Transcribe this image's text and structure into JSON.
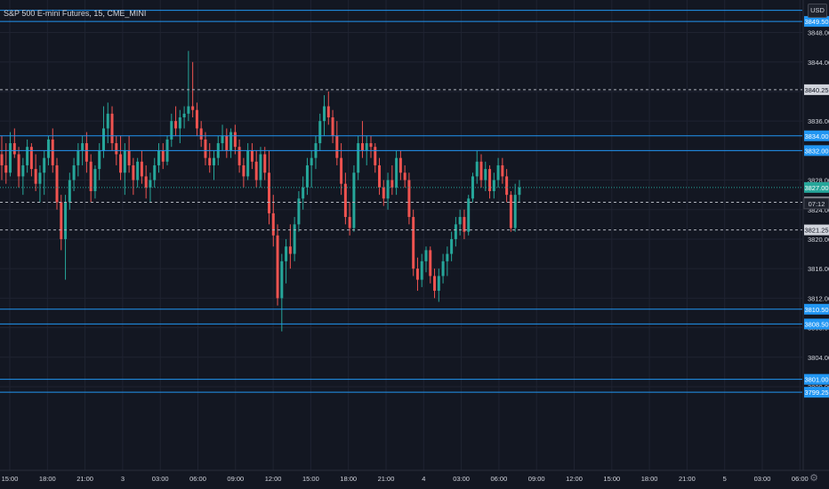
{
  "header": {
    "symbol_title": "S&P 500 E-mini Futures, 15, CME_MINI",
    "currency": "USD"
  },
  "colors": {
    "background": "#131722",
    "grid": "#1f2331",
    "up": "#26a69a",
    "down": "#ef5350",
    "level_line": "#2196f3",
    "dashed_line": "#b2b5be",
    "axis_text": "#d1d4dc"
  },
  "price_axis": {
    "ticks": [
      "3848.00",
      "3844.00",
      "3840.00",
      "3836.00",
      "3832.00",
      "3828.00",
      "3824.00",
      "3820.00",
      "3816.00",
      "3812.00",
      "3808.00",
      "3804.00",
      "3800.00"
    ]
  },
  "time_axis": {
    "labels": [
      "15:00",
      "18:00",
      "21:00",
      "3",
      "03:00",
      "06:00",
      "09:00",
      "12:00",
      "15:00",
      "18:00",
      "21:00",
      "4",
      "03:00",
      "06:00",
      "09:00",
      "12:00",
      "15:00",
      "18:00",
      "21:00",
      "5",
      "03:00",
      "06:00"
    ]
  },
  "horizontal_levels": [
    {
      "price": 3851.0,
      "label": "",
      "style": "solid"
    },
    {
      "price": 3849.5,
      "label": "3849.50",
      "style": "solid"
    },
    {
      "price": 3840.25,
      "label": "3840.25",
      "style": "dashed"
    },
    {
      "price": 3834.0,
      "label": "3834.00",
      "style": "solid"
    },
    {
      "price": 3832.0,
      "label": "3832.00",
      "style": "solid"
    },
    {
      "price": 3827.0,
      "label": "3827.00",
      "style": "current"
    },
    {
      "price": 3825.0,
      "label": "3825.00",
      "style": "dashed"
    },
    {
      "price": 3821.25,
      "label": "3821.25",
      "style": "dashed"
    },
    {
      "price": 3810.5,
      "label": "3810.50",
      "style": "solid"
    },
    {
      "price": 3808.5,
      "label": "3808.50",
      "style": "solid"
    },
    {
      "price": 3801.0,
      "label": "3801.00",
      "style": "solid"
    },
    {
      "price": 3799.25,
      "label": "3799.25",
      "style": "solid"
    }
  ],
  "countdown": "07:12",
  "chart_data": {
    "type": "candlestick",
    "symbol": "S&P 500 E-mini Futures",
    "interval": "15",
    "currency": "USD",
    "ylim": [
      3797,
      3851.5
    ],
    "current_price": 3827.0,
    "candles": [
      {
        "o": 3831.5,
        "h": 3834.0,
        "l": 3828.0,
        "c": 3830.0
      },
      {
        "o": 3830.0,
        "h": 3833.0,
        "l": 3827.5,
        "c": 3829.0
      },
      {
        "o": 3829.0,
        "h": 3834.5,
        "l": 3828.5,
        "c": 3833.0
      },
      {
        "o": 3833.0,
        "h": 3835.0,
        "l": 3831.0,
        "c": 3831.5
      },
      {
        "o": 3831.5,
        "h": 3832.5,
        "l": 3827.0,
        "c": 3828.5
      },
      {
        "o": 3828.5,
        "h": 3831.0,
        "l": 3826.0,
        "c": 3830.0
      },
      {
        "o": 3830.0,
        "h": 3833.5,
        "l": 3829.0,
        "c": 3832.5
      },
      {
        "o": 3832.5,
        "h": 3833.0,
        "l": 3828.5,
        "c": 3829.5
      },
      {
        "o": 3829.5,
        "h": 3831.5,
        "l": 3826.5,
        "c": 3827.5
      },
      {
        "o": 3827.5,
        "h": 3830.0,
        "l": 3825.0,
        "c": 3829.0
      },
      {
        "o": 3829.0,
        "h": 3832.0,
        "l": 3826.0,
        "c": 3831.0
      },
      {
        "o": 3831.0,
        "h": 3834.0,
        "l": 3830.0,
        "c": 3833.5
      },
      {
        "o": 3833.5,
        "h": 3835.0,
        "l": 3829.0,
        "c": 3830.0
      },
      {
        "o": 3830.0,
        "h": 3831.0,
        "l": 3824.0,
        "c": 3825.0
      },
      {
        "o": 3825.0,
        "h": 3826.0,
        "l": 3818.5,
        "c": 3820.0
      },
      {
        "o": 3820.0,
        "h": 3826.0,
        "l": 3814.5,
        "c": 3825.0
      },
      {
        "o": 3825.0,
        "h": 3829.0,
        "l": 3824.0,
        "c": 3828.0
      },
      {
        "o": 3828.0,
        "h": 3831.0,
        "l": 3826.5,
        "c": 3830.0
      },
      {
        "o": 3830.0,
        "h": 3833.0,
        "l": 3828.5,
        "c": 3832.0
      },
      {
        "o": 3832.0,
        "h": 3834.0,
        "l": 3830.0,
        "c": 3833.0
      },
      {
        "o": 3833.0,
        "h": 3834.5,
        "l": 3829.0,
        "c": 3830.5
      },
      {
        "o": 3830.5,
        "h": 3831.5,
        "l": 3825.0,
        "c": 3826.5
      },
      {
        "o": 3826.5,
        "h": 3830.0,
        "l": 3825.5,
        "c": 3829.5
      },
      {
        "o": 3829.5,
        "h": 3833.0,
        "l": 3828.0,
        "c": 3832.0
      },
      {
        "o": 3832.0,
        "h": 3838.0,
        "l": 3831.0,
        "c": 3835.0
      },
      {
        "o": 3835.0,
        "h": 3838.5,
        "l": 3833.0,
        "c": 3837.0
      },
      {
        "o": 3837.0,
        "h": 3838.0,
        "l": 3832.0,
        "c": 3833.0
      },
      {
        "o": 3833.0,
        "h": 3834.0,
        "l": 3830.0,
        "c": 3831.5
      },
      {
        "o": 3831.5,
        "h": 3834.0,
        "l": 3828.0,
        "c": 3829.0
      },
      {
        "o": 3829.0,
        "h": 3833.0,
        "l": 3826.0,
        "c": 3832.0
      },
      {
        "o": 3832.0,
        "h": 3834.0,
        "l": 3829.0,
        "c": 3830.0
      },
      {
        "o": 3830.0,
        "h": 3831.0,
        "l": 3826.0,
        "c": 3828.0
      },
      {
        "o": 3828.0,
        "h": 3831.0,
        "l": 3827.0,
        "c": 3830.5
      },
      {
        "o": 3830.5,
        "h": 3832.0,
        "l": 3827.5,
        "c": 3828.5
      },
      {
        "o": 3828.5,
        "h": 3830.0,
        "l": 3825.5,
        "c": 3827.0
      },
      {
        "o": 3827.0,
        "h": 3829.0,
        "l": 3825.0,
        "c": 3828.0
      },
      {
        "o": 3828.0,
        "h": 3831.0,
        "l": 3827.0,
        "c": 3830.0
      },
      {
        "o": 3830.0,
        "h": 3833.0,
        "l": 3829.0,
        "c": 3832.0
      },
      {
        "o": 3832.0,
        "h": 3833.0,
        "l": 3829.5,
        "c": 3830.5
      },
      {
        "o": 3830.5,
        "h": 3834.0,
        "l": 3830.0,
        "c": 3833.5
      },
      {
        "o": 3833.5,
        "h": 3837.0,
        "l": 3832.5,
        "c": 3836.0
      },
      {
        "o": 3836.0,
        "h": 3838.0,
        "l": 3834.0,
        "c": 3835.0
      },
      {
        "o": 3835.0,
        "h": 3837.5,
        "l": 3833.0,
        "c": 3836.5
      },
      {
        "o": 3836.5,
        "h": 3838.0,
        "l": 3835.0,
        "c": 3837.0
      },
      {
        "o": 3837.0,
        "h": 3845.5,
        "l": 3836.0,
        "c": 3838.0
      },
      {
        "o": 3838.0,
        "h": 3844.0,
        "l": 3836.5,
        "c": 3837.5
      },
      {
        "o": 3837.5,
        "h": 3838.5,
        "l": 3834.0,
        "c": 3835.0
      },
      {
        "o": 3835.0,
        "h": 3836.0,
        "l": 3832.5,
        "c": 3833.5
      },
      {
        "o": 3833.5,
        "h": 3834.5,
        "l": 3830.0,
        "c": 3831.0
      },
      {
        "o": 3831.0,
        "h": 3833.0,
        "l": 3829.0,
        "c": 3830.0
      },
      {
        "o": 3830.0,
        "h": 3832.0,
        "l": 3828.0,
        "c": 3831.0
      },
      {
        "o": 3831.0,
        "h": 3834.0,
        "l": 3830.0,
        "c": 3833.0
      },
      {
        "o": 3833.0,
        "h": 3835.5,
        "l": 3832.0,
        "c": 3834.0
      },
      {
        "o": 3834.0,
        "h": 3835.0,
        "l": 3831.0,
        "c": 3832.0
      },
      {
        "o": 3832.0,
        "h": 3835.0,
        "l": 3831.0,
        "c": 3834.5
      },
      {
        "o": 3834.5,
        "h": 3835.5,
        "l": 3831.5,
        "c": 3832.5
      },
      {
        "o": 3832.5,
        "h": 3833.5,
        "l": 3829.0,
        "c": 3830.0
      },
      {
        "o": 3830.0,
        "h": 3831.0,
        "l": 3827.0,
        "c": 3828.5
      },
      {
        "o": 3828.5,
        "h": 3833.0,
        "l": 3828.0,
        "c": 3832.0
      },
      {
        "o": 3832.0,
        "h": 3833.0,
        "l": 3829.5,
        "c": 3830.5
      },
      {
        "o": 3830.5,
        "h": 3832.0,
        "l": 3827.0,
        "c": 3828.0
      },
      {
        "o": 3828.0,
        "h": 3832.5,
        "l": 3827.0,
        "c": 3831.5
      },
      {
        "o": 3831.5,
        "h": 3832.5,
        "l": 3828.0,
        "c": 3829.0
      },
      {
        "o": 3829.0,
        "h": 3832.0,
        "l": 3822.0,
        "c": 3823.5
      },
      {
        "o": 3823.5,
        "h": 3826.0,
        "l": 3819.0,
        "c": 3820.5
      },
      {
        "o": 3820.5,
        "h": 3822.0,
        "l": 3811.0,
        "c": 3812.0
      },
      {
        "o": 3812.0,
        "h": 3818.0,
        "l": 3807.5,
        "c": 3817.0
      },
      {
        "o": 3817.0,
        "h": 3820.0,
        "l": 3814.0,
        "c": 3819.0
      },
      {
        "o": 3819.0,
        "h": 3822.0,
        "l": 3816.0,
        "c": 3818.0
      },
      {
        "o": 3818.0,
        "h": 3823.0,
        "l": 3817.0,
        "c": 3822.0
      },
      {
        "o": 3822.0,
        "h": 3826.5,
        "l": 3821.0,
        "c": 3825.5
      },
      {
        "o": 3825.5,
        "h": 3828.5,
        "l": 3824.0,
        "c": 3827.0
      },
      {
        "o": 3827.0,
        "h": 3831.0,
        "l": 3826.0,
        "c": 3830.0
      },
      {
        "o": 3830.0,
        "h": 3832.0,
        "l": 3827.0,
        "c": 3831.0
      },
      {
        "o": 3831.0,
        "h": 3834.0,
        "l": 3829.5,
        "c": 3833.0
      },
      {
        "o": 3833.0,
        "h": 3837.0,
        "l": 3832.0,
        "c": 3836.0
      },
      {
        "o": 3836.0,
        "h": 3839.5,
        "l": 3834.0,
        "c": 3838.0
      },
      {
        "o": 3838.0,
        "h": 3840.0,
        "l": 3835.5,
        "c": 3836.5
      },
      {
        "o": 3836.5,
        "h": 3837.5,
        "l": 3833.0,
        "c": 3834.0
      },
      {
        "o": 3834.0,
        "h": 3836.0,
        "l": 3830.0,
        "c": 3831.0
      },
      {
        "o": 3831.0,
        "h": 3833.0,
        "l": 3826.0,
        "c": 3827.5
      },
      {
        "o": 3827.5,
        "h": 3829.0,
        "l": 3822.0,
        "c": 3823.0
      },
      {
        "o": 3823.0,
        "h": 3825.0,
        "l": 3820.5,
        "c": 3821.5
      },
      {
        "o": 3821.5,
        "h": 3830.0,
        "l": 3821.0,
        "c": 3829.0
      },
      {
        "o": 3829.0,
        "h": 3834.0,
        "l": 3828.0,
        "c": 3833.0
      },
      {
        "o": 3833.0,
        "h": 3836.0,
        "l": 3831.0,
        "c": 3832.0
      },
      {
        "o": 3832.0,
        "h": 3834.0,
        "l": 3830.0,
        "c": 3833.0
      },
      {
        "o": 3833.0,
        "h": 3834.0,
        "l": 3831.0,
        "c": 3832.5
      },
      {
        "o": 3832.5,
        "h": 3833.0,
        "l": 3829.0,
        "c": 3830.0
      },
      {
        "o": 3830.0,
        "h": 3831.0,
        "l": 3826.0,
        "c": 3827.0
      },
      {
        "o": 3827.0,
        "h": 3828.0,
        "l": 3824.5,
        "c": 3825.5
      },
      {
        "o": 3825.5,
        "h": 3829.0,
        "l": 3824.0,
        "c": 3828.0
      },
      {
        "o": 3828.0,
        "h": 3830.0,
        "l": 3826.0,
        "c": 3827.0
      },
      {
        "o": 3827.0,
        "h": 3832.0,
        "l": 3826.0,
        "c": 3831.0
      },
      {
        "o": 3831.0,
        "h": 3832.0,
        "l": 3828.0,
        "c": 3829.0
      },
      {
        "o": 3829.0,
        "h": 3830.0,
        "l": 3827.0,
        "c": 3828.0
      },
      {
        "o": 3828.0,
        "h": 3829.0,
        "l": 3822.0,
        "c": 3823.0
      },
      {
        "o": 3823.0,
        "h": 3824.0,
        "l": 3815.0,
        "c": 3816.0
      },
      {
        "o": 3816.0,
        "h": 3817.5,
        "l": 3813.0,
        "c": 3814.5
      },
      {
        "o": 3814.5,
        "h": 3818.0,
        "l": 3813.5,
        "c": 3817.0
      },
      {
        "o": 3817.0,
        "h": 3819.0,
        "l": 3815.5,
        "c": 3818.5
      },
      {
        "o": 3818.5,
        "h": 3819.0,
        "l": 3814.0,
        "c": 3815.0
      },
      {
        "o": 3815.0,
        "h": 3816.0,
        "l": 3812.0,
        "c": 3813.0
      },
      {
        "o": 3813.0,
        "h": 3816.0,
        "l": 3811.5,
        "c": 3815.0
      },
      {
        "o": 3815.0,
        "h": 3818.0,
        "l": 3814.0,
        "c": 3817.0
      },
      {
        "o": 3817.0,
        "h": 3819.0,
        "l": 3815.0,
        "c": 3818.0
      },
      {
        "o": 3818.0,
        "h": 3821.0,
        "l": 3817.0,
        "c": 3820.0
      },
      {
        "o": 3820.0,
        "h": 3823.0,
        "l": 3819.0,
        "c": 3822.0
      },
      {
        "o": 3822.0,
        "h": 3824.0,
        "l": 3820.5,
        "c": 3823.0
      },
      {
        "o": 3823.0,
        "h": 3824.0,
        "l": 3820.0,
        "c": 3821.0
      },
      {
        "o": 3821.0,
        "h": 3826.0,
        "l": 3820.5,
        "c": 3825.5
      },
      {
        "o": 3825.5,
        "h": 3829.0,
        "l": 3825.0,
        "c": 3828.5
      },
      {
        "o": 3828.5,
        "h": 3832.0,
        "l": 3827.5,
        "c": 3830.5
      },
      {
        "o": 3830.5,
        "h": 3831.5,
        "l": 3827.0,
        "c": 3828.0
      },
      {
        "o": 3828.0,
        "h": 3830.5,
        "l": 3826.5,
        "c": 3829.5
      },
      {
        "o": 3829.5,
        "h": 3830.0,
        "l": 3825.5,
        "c": 3826.5
      },
      {
        "o": 3826.5,
        "h": 3829.0,
        "l": 3825.5,
        "c": 3828.0
      },
      {
        "o": 3828.0,
        "h": 3831.0,
        "l": 3827.0,
        "c": 3830.0
      },
      {
        "o": 3830.0,
        "h": 3831.0,
        "l": 3827.5,
        "c": 3828.5
      },
      {
        "o": 3828.5,
        "h": 3829.5,
        "l": 3825.0,
        "c": 3826.0
      },
      {
        "o": 3826.0,
        "h": 3826.5,
        "l": 3821.0,
        "c": 3821.5
      },
      {
        "o": 3821.5,
        "h": 3827.5,
        "l": 3821.0,
        "c": 3826.0
      },
      {
        "o": 3826.0,
        "h": 3828.0,
        "l": 3825.0,
        "c": 3827.0
      }
    ]
  }
}
